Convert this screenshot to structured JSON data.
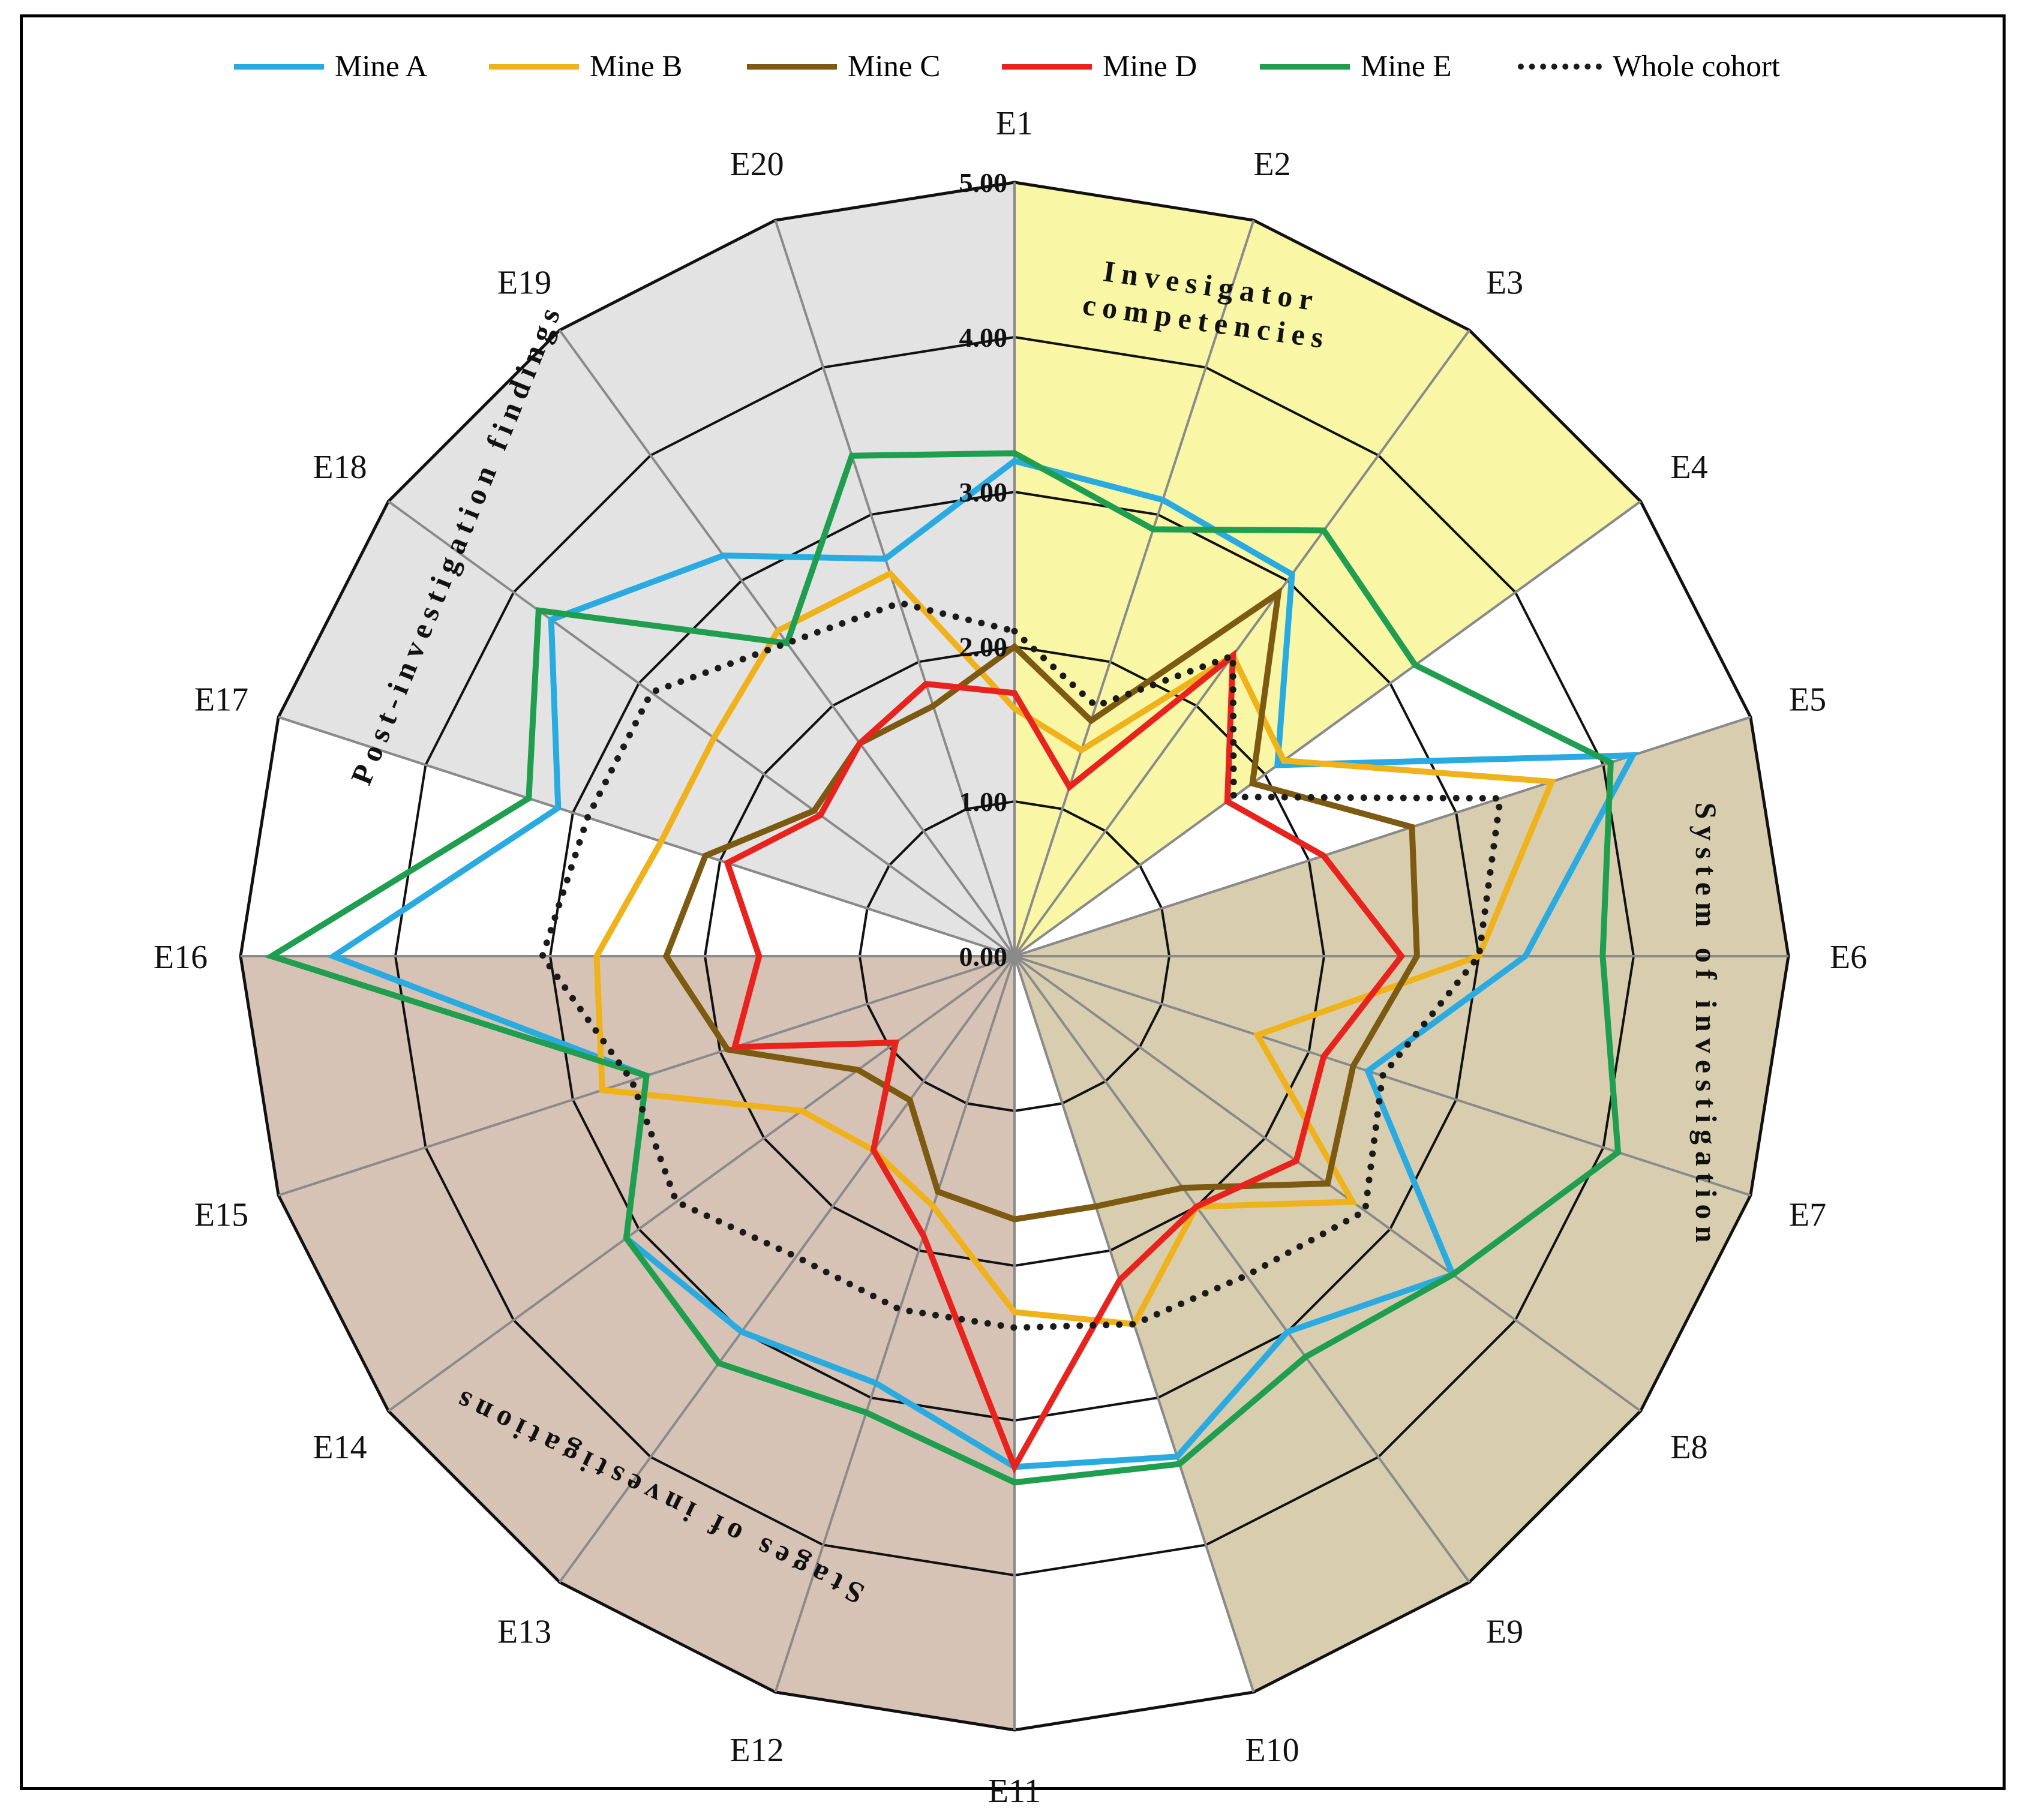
{
  "chart_data": {
    "type": "radar",
    "categories": [
      "E1",
      "E2",
      "E3",
      "E4",
      "E5",
      "E6",
      "E7",
      "E8",
      "E9",
      "E10",
      "E11",
      "E12",
      "E13",
      "E14",
      "E15",
      "E16",
      "E17",
      "E18",
      "E19",
      "E20"
    ],
    "rlim": [
      0,
      5
    ],
    "ticks": [
      "0.00",
      "1.00",
      "2.00",
      "3.00",
      "4.00",
      "5.00"
    ],
    "grid": true,
    "legend_position": "top",
    "sectors": [
      {
        "label": "Invesigator competencies",
        "label_lines": [
          "Invesigator",
          "competencies"
        ],
        "from_index": 0,
        "to_index": 3,
        "color": "#f9f7a6"
      },
      {
        "label": "System of investigation",
        "label_lines": [
          "System of investigation"
        ],
        "from_index": 4,
        "to_index": 9,
        "color": "#d8ceaf"
      },
      {
        "label": "Stages of investigations",
        "label_lines": [
          "Stages of investigations"
        ],
        "from_index": 10,
        "to_index": 15,
        "color": "#d7c3b5"
      },
      {
        "label": "Post-investigation findings",
        "label_lines": [
          "Post-investigation findings"
        ],
        "from_index": 16,
        "to_index": 20,
        "color": "#e3e3e3"
      }
    ],
    "series": [
      {
        "name": "Mine A",
        "color": "#29abe2",
        "style": "solid",
        "values": [
          3.2,
          3.1,
          3.05,
          2.1,
          4.2,
          3.3,
          2.4,
          3.5,
          3.0,
          3.4,
          3.3,
          2.9,
          3.0,
          3.1,
          2.5,
          4.4,
          3.1,
          3.7,
          3.2,
          2.7
        ]
      },
      {
        "name": "Mine B",
        "color": "#f0b21b",
        "style": "solid",
        "values": [
          1.6,
          1.4,
          2.4,
          2.15,
          3.65,
          3.0,
          1.65,
          2.7,
          2.0,
          2.5,
          2.3,
          1.7,
          1.55,
          1.7,
          2.8,
          2.7,
          2.4,
          2.4,
          2.6,
          2.6
        ]
      },
      {
        "name": "Mine C",
        "color": "#7c5a12",
        "style": "solid",
        "values": [
          2.0,
          1.6,
          2.9,
          1.9,
          2.7,
          2.6,
          2.3,
          2.5,
          1.85,
          1.7,
          1.7,
          1.6,
          1.15,
          1.25,
          1.95,
          2.25,
          2.1,
          1.6,
          1.7,
          1.7
        ]
      },
      {
        "name": "Mine D",
        "color": "#e8231e",
        "style": "solid",
        "values": [
          1.7,
          1.15,
          2.4,
          1.7,
          2.1,
          2.5,
          2.1,
          2.25,
          2.0,
          2.2,
          3.3,
          1.9,
          1.55,
          0.95,
          1.9,
          1.65,
          1.95,
          1.55,
          1.7,
          1.85
        ]
      },
      {
        "name": "Mine E",
        "color": "#1f9e4f",
        "style": "solid",
        "values": [
          3.25,
          2.9,
          3.4,
          3.2,
          4.05,
          3.8,
          4.1,
          3.5,
          3.2,
          3.45,
          3.4,
          3.1,
          3.25,
          3.1,
          2.5,
          4.8,
          3.3,
          3.8,
          2.5,
          3.4
        ]
      },
      {
        "name": "Whole cohort",
        "color": "#1a1a1a",
        "style": "dotted",
        "values": [
          2.1,
          1.7,
          2.4,
          1.75,
          3.3,
          3.0,
          2.5,
          2.8,
          2.55,
          2.5,
          2.4,
          2.4,
          2.4,
          2.7,
          2.6,
          3.05,
          2.9,
          2.9,
          2.5,
          2.4
        ]
      }
    ]
  }
}
